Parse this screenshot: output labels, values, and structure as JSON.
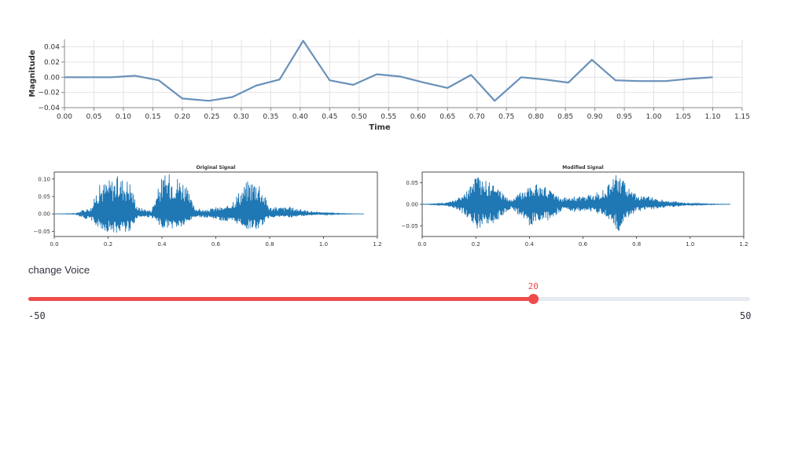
{
  "colors": {
    "top_line": "#6991b9",
    "signal": "#1f77b4",
    "slider_accent": "#ef4b4b",
    "slider_track": "#e6eaf1"
  },
  "chart_data": [
    {
      "type": "line",
      "xlabel": "Time",
      "ylabel": "Magnitude",
      "xlim": [
        0,
        1.15
      ],
      "ylim": [
        -0.04,
        0.05
      ],
      "x_ticks": [
        "0.00",
        "0.05",
        "0.10",
        "0.15",
        "0.20",
        "0.25",
        "0.30",
        "0.35",
        "0.40",
        "0.45",
        "0.50",
        "0.55",
        "0.60",
        "0.65",
        "0.70",
        "0.75",
        "0.80",
        "0.85",
        "0.90",
        "0.95",
        "1.00",
        "1.05",
        "1.10",
        "1.15"
      ],
      "y_ticks": [
        "0.04",
        "0.02",
        "0.00",
        "−0.02",
        "−0.04"
      ],
      "grid": true,
      "x": [
        0.0,
        0.04,
        0.08,
        0.12,
        0.16,
        0.2,
        0.245,
        0.285,
        0.325,
        0.365,
        0.405,
        0.45,
        0.49,
        0.53,
        0.57,
        0.61,
        0.65,
        0.69,
        0.73,
        0.775,
        0.815,
        0.855,
        0.895,
        0.935,
        0.975,
        1.02,
        1.06,
        1.1
      ],
      "y": [
        0.0,
        0.0,
        0.0,
        0.002,
        -0.004,
        -0.028,
        -0.031,
        -0.026,
        -0.011,
        -0.003,
        0.048,
        -0.004,
        -0.01,
        0.004,
        0.001,
        -0.007,
        -0.014,
        0.003,
        -0.031,
        0.0,
        -0.003,
        -0.007,
        0.023,
        -0.004,
        -0.005,
        -0.005,
        -0.002,
        0.0
      ]
    },
    {
      "type": "line",
      "title": "Original Signal",
      "xlim": [
        0,
        1.2
      ],
      "ylim": [
        -0.065,
        0.12
      ],
      "x_ticks": [
        "0.0",
        "0.2",
        "0.4",
        "0.6",
        "0.8",
        "1.0",
        "1.2"
      ],
      "y_ticks": [
        "0.10",
        "0.05",
        "0.00",
        "−0.05"
      ],
      "grid": false,
      "envelope": {
        "x": [
          0.0,
          0.08,
          0.1,
          0.14,
          0.16,
          0.2,
          0.24,
          0.28,
          0.31,
          0.36,
          0.4,
          0.44,
          0.48,
          0.52,
          0.56,
          0.6,
          0.64,
          0.68,
          0.72,
          0.76,
          0.8,
          0.84,
          0.88,
          0.94,
          1.0,
          1.06,
          1.15
        ],
        "top": [
          0.0,
          0.001,
          0.01,
          0.02,
          0.08,
          0.1,
          0.11,
          0.1,
          0.02,
          0.01,
          0.11,
          0.12,
          0.1,
          0.02,
          0.01,
          0.02,
          0.02,
          0.06,
          0.1,
          0.1,
          0.02,
          0.02,
          0.02,
          0.01,
          0.004,
          0.001,
          0.0
        ],
        "bot": [
          0.0,
          -0.001,
          -0.01,
          -0.02,
          -0.04,
          -0.055,
          -0.055,
          -0.05,
          -0.01,
          -0.01,
          -0.04,
          -0.045,
          -0.04,
          -0.01,
          -0.01,
          -0.015,
          -0.025,
          -0.03,
          -0.045,
          -0.045,
          -0.01,
          -0.01,
          -0.01,
          -0.005,
          -0.002,
          -0.001,
          0.0
        ]
      }
    },
    {
      "type": "line",
      "title": "Modified Signal",
      "xlim": [
        0,
        1.2
      ],
      "ylim": [
        -0.075,
        0.075
      ],
      "x_ticks": [
        "0.0",
        "0.2",
        "0.4",
        "0.6",
        "0.8",
        "1.0",
        "1.2"
      ],
      "y_ticks": [
        "0.05",
        "0.00",
        "−0.05"
      ],
      "grid": false,
      "envelope": {
        "x": [
          0.0,
          0.08,
          0.12,
          0.16,
          0.2,
          0.24,
          0.28,
          0.33,
          0.36,
          0.4,
          0.44,
          0.48,
          0.52,
          0.56,
          0.6,
          0.64,
          0.68,
          0.72,
          0.74,
          0.78,
          0.82,
          0.86,
          0.9,
          0.96,
          1.0,
          1.06,
          1.15
        ],
        "top": [
          0.0,
          0.002,
          0.01,
          0.025,
          0.065,
          0.055,
          0.04,
          0.01,
          0.025,
          0.05,
          0.045,
          0.035,
          0.015,
          0.02,
          0.018,
          0.025,
          0.035,
          0.07,
          0.07,
          0.03,
          0.02,
          0.018,
          0.01,
          0.006,
          0.002,
          0.001,
          0.0
        ],
        "bot": [
          0.0,
          -0.002,
          -0.01,
          -0.025,
          -0.06,
          -0.055,
          -0.04,
          -0.01,
          -0.025,
          -0.05,
          -0.045,
          -0.035,
          -0.015,
          -0.02,
          -0.016,
          -0.02,
          -0.025,
          -0.06,
          -0.065,
          -0.025,
          -0.015,
          -0.012,
          -0.008,
          -0.005,
          -0.002,
          -0.001,
          0.0
        ]
      }
    }
  ],
  "slider": {
    "label": "change Voice",
    "min": -50,
    "max": 50,
    "value": 20,
    "min_label": "-50",
    "max_label": "50",
    "value_label": "20"
  }
}
